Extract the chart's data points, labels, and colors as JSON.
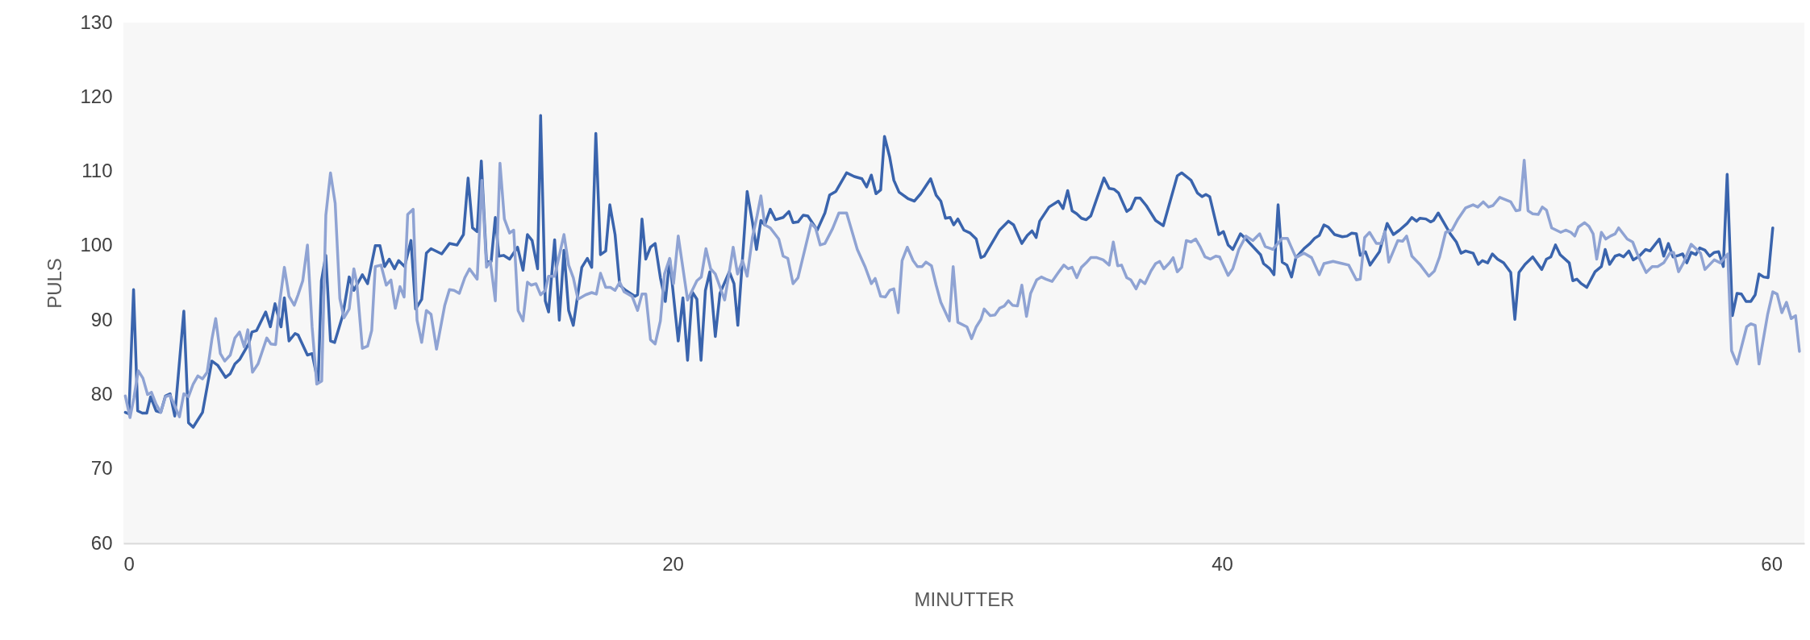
{
  "chart_data": {
    "type": "line",
    "xlabel": "MINUTTER",
    "ylabel": "PULS",
    "xlim": [
      0,
      61.2
    ],
    "ylim": [
      60,
      130
    ],
    "xticks": [
      0,
      20,
      40,
      60
    ],
    "yticks": [
      60,
      70,
      80,
      90,
      100,
      110,
      120,
      130
    ],
    "grid": false,
    "legend": false,
    "marker": "none",
    "line_style": "solid",
    "series": [
      {
        "color": "#3a64ad",
        "x": [
          0.07,
          0.2,
          0.37,
          0.52,
          0.69,
          0.85,
          0.99,
          1.19,
          1.36,
          1.53,
          1.7,
          1.87,
          2.2,
          2.37,
          2.54,
          2.88,
          3.22,
          3.44,
          3.72,
          3.89,
          4.06,
          4.23,
          4.56,
          4.68,
          4.85,
          5.18,
          5.35,
          5.52,
          5.74,
          5.86,
          6.03,
          6.25,
          6.36,
          6.7,
          6.87,
          7.09,
          7.21,
          7.37,
          7.54,
          7.69,
          7.99,
          8.22,
          8.39,
          8.7,
          8.89,
          9.17,
          9.34,
          9.51,
          9.68,
          9.87,
          10.02,
          10.24,
          10.47,
          10.64,
          10.86,
          11.03,
          11.2,
          11.59,
          11.87,
          12.15,
          12.38,
          12.55,
          12.71,
          12.88,
          13.03,
          13.22,
          13.39,
          13.54,
          13.67,
          13.84,
          14.06,
          14.35,
          14.55,
          14.71,
          14.88,
          15.08,
          15.19,
          15.36,
          15.48,
          15.7,
          15.87,
          16.04,
          16.21,
          16.38,
          16.69,
          16.89,
          17.05,
          17.2,
          17.37,
          17.56,
          17.71,
          17.9,
          18.07,
          18.29,
          18.63,
          18.72,
          18.88,
          19.02,
          19.19,
          19.36,
          19.55,
          19.73,
          19.89,
          20.03,
          20.2,
          20.37,
          20.54,
          20.71,
          20.88,
          21.03,
          21.19,
          21.35,
          21.55,
          21.72,
          22.06,
          22.23,
          22.37,
          22.54,
          22.71,
          22.9,
          23.05,
          23.21,
          23.35,
          23.55,
          23.74,
          24.02,
          24.23,
          24.38,
          24.56,
          24.75,
          24.92,
          25.26,
          25.54,
          25.71,
          25.94,
          26.33,
          26.61,
          26.89,
          27.06,
          27.23,
          27.4,
          27.57,
          27.71,
          27.9,
          28.05,
          28.24,
          28.58,
          28.8,
          29.03,
          29.39,
          29.59,
          29.76,
          29.93,
          30.1,
          30.23,
          30.38,
          30.6,
          30.83,
          31.05,
          31.22,
          31.34,
          31.9,
          32.22,
          32.41,
          32.71,
          32.91,
          33.08,
          33.23,
          33.36,
          33.7,
          34.04,
          34.21,
          34.38,
          34.54,
          34.71,
          34.88,
          35.05,
          35.22,
          35.7,
          35.89,
          36.06,
          36.23,
          36.53,
          36.68,
          36.85,
          37.02,
          37.24,
          37.58,
          37.86,
          38.37,
          38.53,
          38.87,
          39.1,
          39.27,
          39.41,
          39.55,
          39.88,
          40.05,
          40.22,
          40.39,
          40.67,
          40.84,
          41.12,
          41.4,
          41.51,
          41.74,
          41.89,
          42.04,
          42.19,
          42.36,
          42.53,
          42.69,
          42.98,
          43.2,
          43.37,
          43.54,
          43.71,
          43.87,
          44.1,
          44.38,
          44.55,
          44.72,
          44.89,
          45.03,
          45.22,
          45.39,
          45.73,
          46.01,
          46.24,
          46.46,
          46.74,
          46.91,
          47.08,
          47.2,
          47.42,
          47.59,
          47.7,
          47.87,
          48.09,
          48.31,
          48.53,
          48.7,
          48.87,
          49.14,
          49.33,
          49.48,
          49.67,
          49.84,
          50.03,
          50.25,
          50.51,
          50.66,
          50.81,
          51.03,
          51.31,
          51.64,
          51.81,
          51.97,
          52.14,
          52.31,
          52.64,
          52.77,
          52.92,
          53.08,
          53.28,
          53.58,
          53.81,
          53.95,
          54.11,
          54.31,
          54.47,
          54.62,
          54.81,
          54.97,
          55.19,
          55.42,
          55.58,
          55.92,
          56.08,
          56.25,
          56.42,
          56.62,
          56.77,
          56.92,
          57.08,
          57.25,
          57.39,
          57.58,
          57.75,
          57.92,
          58.08,
          58.25,
          58.39,
          58.58,
          58.75,
          58.91,
          59.08,
          59.25,
          59.41,
          59.55,
          59.72,
          59.88,
          60.05
        ],
        "values": [
          77.6,
          77.4,
          94.1,
          77.8,
          77.5,
          77.5,
          79.7,
          77.8,
          77.6,
          79.8,
          80.1,
          77.1,
          91.2,
          76.2,
          75.6,
          77.6,
          84.5,
          83.9,
          82.3,
          82.8,
          84.1,
          84.7,
          86.8,
          88.4,
          88.6,
          91.1,
          89.1,
          92.2,
          89.1,
          93.0,
          87.2,
          88.2,
          88.0,
          85.3,
          85.5,
          81.6,
          95.3,
          98.7,
          87.2,
          87.0,
          90.7,
          95.8,
          94.0,
          96.1,
          94.9,
          100.0,
          100.0,
          97.2,
          98.2,
          96.9,
          98.0,
          97.2,
          100.7,
          91.5,
          92.8,
          99.0,
          99.6,
          98.9,
          100.3,
          100.1,
          101.5,
          109.1,
          102.4,
          101.9,
          111.4,
          97.8,
          97.9,
          103.8,
          98.6,
          98.7,
          98.2,
          99.8,
          96.7,
          101.5,
          100.7,
          96.9,
          117.5,
          92.6,
          91.1,
          100.8,
          90.0,
          99.4,
          91.3,
          89.3,
          97.1,
          98.3,
          97.1,
          115.1,
          98.8,
          99.3,
          105.5,
          101.5,
          94.7,
          94.0,
          93.2,
          93.4,
          103.6,
          98.2,
          99.8,
          100.3,
          95.7,
          92.5,
          98.2,
          93.2,
          87.2,
          93.0,
          84.6,
          93.8,
          92.8,
          84.6,
          94.0,
          96.5,
          87.8,
          93.6,
          96.5,
          94.9,
          89.3,
          98.2,
          107.3,
          103.2,
          99.5,
          103.4,
          102.8,
          104.9,
          103.5,
          103.8,
          104.6,
          103.1,
          103.2,
          104.1,
          104.0,
          102.1,
          104.4,
          106.8,
          107.3,
          109.8,
          109.3,
          109.0,
          107.9,
          109.5,
          107.0,
          107.5,
          114.7,
          111.9,
          108.8,
          107.2,
          106.3,
          106.0,
          107.0,
          109.0,
          106.8,
          106.0,
          103.7,
          103.8,
          102.8,
          103.6,
          102.1,
          101.7,
          100.9,
          98.4,
          98.6,
          102.1,
          103.3,
          102.8,
          100.3,
          101.4,
          102.0,
          101.1,
          103.3,
          105.2,
          106.0,
          105.0,
          107.4,
          104.7,
          104.3,
          103.7,
          103.5,
          104.0,
          109.1,
          107.7,
          107.6,
          107.1,
          104.6,
          105.0,
          106.4,
          106.4,
          105.4,
          103.4,
          102.7,
          109.4,
          109.8,
          108.8,
          107.1,
          106.6,
          106.9,
          106.6,
          101.5,
          101.9,
          100.1,
          99.5,
          101.6,
          101.0,
          99.9,
          98.8,
          97.6,
          96.9,
          96.1,
          105.5,
          97.8,
          97.4,
          95.8,
          98.4,
          99.6,
          100.3,
          101.0,
          101.4,
          102.8,
          102.5,
          101.5,
          101.2,
          101.3,
          101.7,
          101.6,
          98.7,
          99.2,
          97.4,
          99.2,
          103.0,
          101.5,
          102.1,
          103.0,
          103.8,
          103.3,
          103.7,
          103.6,
          103.2,
          103.4,
          104.4,
          103.0,
          101.6,
          100.5,
          99.0,
          99.3,
          99.0,
          97.5,
          98.0,
          97.7,
          98.9,
          98.2,
          97.7,
          96.4,
          90.1,
          96.4,
          97.5,
          98.5,
          96.8,
          98.2,
          98.5,
          100.1,
          98.8,
          97.7,
          95.3,
          95.5,
          94.9,
          94.4,
          96.5,
          97.2,
          99.5,
          97.5,
          98.6,
          98.8,
          98.5,
          99.3,
          98.1,
          98.6,
          99.5,
          99.3,
          100.9,
          98.6,
          100.3,
          98.5,
          98.7,
          98.9,
          97.7,
          99.1,
          98.8,
          99.7,
          99.4,
          98.6,
          99.1,
          99.2,
          97.2,
          109.6,
          90.6,
          93.6,
          93.5,
          92.5,
          92.5,
          93.4,
          96.2,
          95.8,
          95.7,
          102.4
        ]
      },
      {
        "color": "#8fa3d3",
        "x": [
          0.07,
          0.24,
          0.38,
          0.54,
          0.71,
          0.88,
          1.02,
          1.19,
          1.36,
          1.53,
          1.7,
          2.04,
          2.2,
          2.37,
          2.54,
          2.71,
          2.88,
          3.05,
          3.22,
          3.36,
          3.53,
          3.69,
          3.89,
          4.06,
          4.23,
          4.4,
          4.53,
          4.7,
          4.9,
          5.22,
          5.37,
          5.54,
          5.69,
          5.86,
          6.03,
          6.22,
          6.36,
          6.53,
          6.7,
          6.87,
          7.04,
          7.22,
          7.37,
          7.54,
          7.71,
          7.88,
          8.03,
          8.22,
          8.39,
          8.5,
          8.7,
          8.89,
          9.04,
          9.17,
          9.38,
          9.57,
          9.74,
          9.9,
          10.07,
          10.22,
          10.35,
          10.55,
          10.69,
          10.86,
          11.03,
          11.2,
          11.4,
          11.7,
          11.87,
          12.04,
          12.23,
          12.43,
          12.6,
          12.88,
          13.05,
          13.22,
          13.36,
          13.54,
          13.71,
          13.87,
          14.06,
          14.21,
          14.37,
          14.55,
          14.71,
          14.85,
          15.02,
          15.19,
          15.36,
          15.48,
          15.7,
          16.04,
          16.21,
          16.38,
          16.55,
          16.83,
          17.05,
          17.22,
          17.37,
          17.56,
          17.73,
          17.9,
          18.07,
          18.23,
          18.52,
          18.72,
          18.88,
          19.02,
          19.19,
          19.36,
          19.55,
          19.7,
          19.89,
          20.03,
          20.2,
          20.54,
          20.71,
          20.88,
          21.04,
          21.21,
          21.38,
          21.55,
          21.89,
          22.06,
          22.2,
          22.36,
          22.54,
          22.71,
          22.9,
          23.07,
          23.21,
          23.35,
          23.55,
          23.86,
          24.02,
          24.19,
          24.38,
          24.56,
          25.04,
          25.2,
          25.37,
          25.54,
          25.82,
          26.05,
          26.33,
          26.72,
          27.0,
          27.23,
          27.37,
          27.57,
          27.74,
          27.9,
          28.05,
          28.21,
          28.35,
          28.54,
          28.75,
          28.91,
          29.08,
          29.22,
          29.42,
          29.59,
          29.76,
          30.07,
          30.21,
          30.38,
          30.71,
          30.88,
          31.05,
          31.22,
          31.34,
          31.56,
          31.73,
          31.9,
          32.07,
          32.22,
          32.37,
          32.55,
          32.71,
          32.88,
          33.03,
          33.25,
          33.42,
          33.59,
          33.81,
          34.04,
          34.24,
          34.4,
          34.54,
          34.71,
          34.88,
          35.05,
          35.22,
          35.44,
          35.67,
          35.89,
          36.04,
          36.2,
          36.34,
          36.53,
          36.68,
          36.87,
          37.02,
          37.19,
          37.41,
          37.58,
          37.73,
          37.88,
          38.09,
          38.22,
          38.37,
          38.53,
          38.7,
          38.87,
          39.04,
          39.21,
          39.38,
          39.57,
          39.77,
          39.91,
          40.22,
          40.39,
          40.61,
          40.87,
          41.12,
          41.37,
          41.57,
          41.85,
          42.19,
          42.38,
          42.69,
          42.98,
          43.26,
          43.54,
          43.71,
          44.04,
          44.38,
          44.61,
          44.89,
          45.03,
          45.19,
          45.37,
          45.62,
          45.79,
          45.93,
          46.07,
          46.4,
          46.57,
          46.72,
          46.91,
          47.2,
          47.53,
          47.73,
          47.92,
          48.14,
          48.37,
          48.59,
          48.87,
          49.14,
          49.31,
          49.51,
          49.7,
          49.86,
          50.11,
          50.31,
          50.51,
          50.7,
          50.84,
          51.0,
          51.14,
          51.31,
          51.51,
          51.66,
          51.81,
          52.0,
          52.33,
          52.51,
          52.7,
          52.84,
          52.97,
          53.2,
          53.36,
          53.51,
          53.64,
          53.81,
          53.97,
          54.14,
          54.31,
          54.44,
          54.75,
          54.95,
          55.14,
          55.44,
          55.66,
          55.86,
          56.08,
          56.3,
          56.44,
          56.62,
          56.8,
          57.08,
          57.42,
          57.58,
          57.92,
          58.14,
          58.41,
          58.55,
          58.75,
          59.1,
          59.25,
          59.41,
          59.55,
          59.86,
          60.05,
          60.21,
          60.38,
          60.55,
          60.72,
          60.88,
          61.02
        ],
        "values": [
          79.8,
          76.9,
          79.5,
          83.2,
          82.2,
          80.0,
          80.3,
          78.7,
          77.6,
          79.7,
          79.9,
          77.0,
          80.1,
          79.7,
          81.4,
          82.5,
          82.1,
          83.0,
          87.4,
          90.2,
          85.5,
          84.5,
          85.3,
          87.6,
          88.4,
          86.4,
          88.7,
          83.0,
          84.1,
          87.6,
          86.8,
          86.7,
          92.4,
          97.1,
          93.2,
          92.0,
          93.4,
          95.3,
          100.1,
          89.1,
          81.4,
          81.8,
          104.1,
          109.8,
          105.7,
          92.9,
          90.3,
          91.5,
          96.9,
          94.9,
          86.2,
          86.5,
          88.6,
          97.2,
          97.4,
          94.7,
          95.4,
          91.6,
          94.5,
          93.1,
          104.2,
          104.9,
          90.0,
          87.0,
          91.3,
          90.8,
          86.1,
          92.0,
          94.1,
          94.0,
          93.6,
          95.7,
          96.9,
          95.5,
          108.8,
          97.1,
          97.9,
          92.6,
          111.1,
          103.6,
          101.7,
          102.1,
          91.3,
          89.9,
          95.1,
          94.7,
          94.9,
          93.4,
          94.0,
          95.9,
          95.9,
          101.5,
          97.4,
          95.7,
          92.8,
          93.4,
          93.7,
          93.5,
          96.3,
          94.4,
          94.4,
          94.0,
          95.1,
          93.8,
          93.2,
          91.3,
          93.5,
          93.5,
          87.4,
          86.8,
          89.9,
          96.2,
          98.3,
          94.9,
          101.3,
          92.7,
          94.0,
          95.3,
          95.8,
          99.6,
          96.9,
          96.2,
          92.7,
          96.5,
          99.8,
          96.2,
          98.0,
          95.9,
          101.1,
          104.0,
          106.7,
          102.8,
          102.4,
          100.9,
          98.6,
          98.3,
          94.9,
          95.7,
          103.0,
          102.4,
          100.1,
          100.3,
          102.3,
          104.4,
          104.4,
          99.5,
          97.2,
          94.9,
          95.6,
          93.2,
          93.1,
          94.0,
          94.2,
          91.0,
          98.0,
          99.8,
          98.0,
          97.2,
          97.2,
          97.8,
          97.3,
          94.7,
          92.4,
          89.9,
          97.2,
          89.7,
          89.1,
          87.5,
          89.1,
          90.1,
          91.5,
          90.6,
          90.7,
          91.6,
          91.9,
          92.6,
          92.0,
          91.9,
          94.7,
          90.5,
          93.6,
          95.4,
          95.8,
          95.5,
          95.2,
          96.4,
          97.4,
          96.9,
          97.1,
          95.7,
          97.1,
          97.7,
          98.4,
          98.4,
          98.1,
          97.4,
          100.5,
          97.3,
          97.4,
          95.7,
          95.4,
          94.2,
          95.4,
          94.9,
          96.6,
          97.6,
          97.9,
          96.9,
          97.7,
          98.4,
          96.5,
          97.1,
          100.7,
          100.5,
          100.9,
          99.8,
          98.5,
          98.2,
          98.6,
          98.5,
          96.0,
          96.9,
          99.5,
          101.3,
          100.7,
          101.6,
          99.9,
          99.5,
          101.0,
          101.0,
          98.4,
          99.0,
          98.4,
          96.1,
          97.6,
          97.9,
          97.6,
          97.4,
          95.4,
          95.5,
          101.1,
          101.8,
          100.3,
          100.3,
          101.9,
          97.8,
          100.7,
          100.6,
          101.3,
          98.6,
          97.5,
          95.9,
          96.6,
          98.5,
          101.8,
          102.1,
          103.6,
          105.1,
          105.5,
          105.2,
          105.9,
          105.2,
          105.4,
          106.5,
          106.2,
          105.9,
          104.7,
          104.8,
          111.5,
          104.7,
          104.3,
          104.2,
          105.2,
          104.8,
          102.4,
          101.8,
          102.1,
          101.8,
          101.3,
          102.5,
          103.1,
          102.6,
          101.6,
          98.2,
          101.8,
          100.9,
          101.3,
          101.6,
          102.4,
          100.9,
          100.5,
          98.7,
          96.4,
          97.2,
          97.2,
          97.7,
          99.0,
          99.1,
          96.5,
          97.7,
          100.2,
          99.0,
          96.8,
          98.1,
          97.7,
          98.9,
          85.9,
          84.1,
          89.1,
          89.5,
          89.3,
          84.1,
          90.7,
          93.8,
          93.5,
          91.0,
          92.4,
          90.2,
          90.6,
          85.8
        ]
      }
    ]
  }
}
